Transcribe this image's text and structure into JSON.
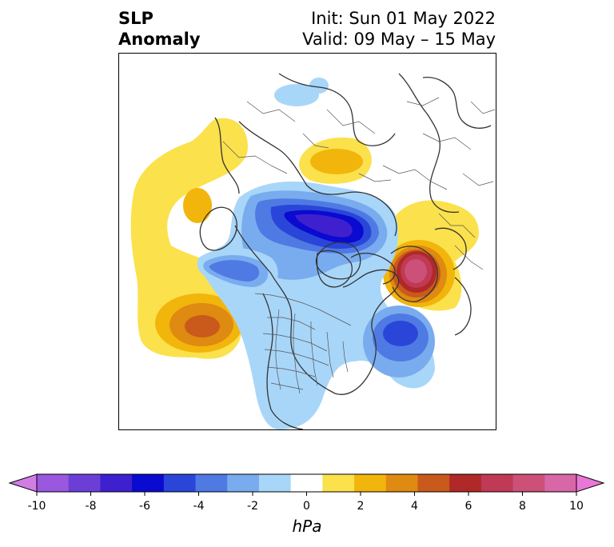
{
  "title": {
    "left_line1": "SLP",
    "left_line2": "Anomaly",
    "right_line1": "Init: Sun 01 May 2022",
    "right_line2": "Valid: 09 May – 15 May"
  },
  "colorbar": {
    "unit": "hPa",
    "min": -10,
    "max": 10,
    "tick_labels": [
      "-10",
      "-8",
      "-6",
      "-4",
      "-2",
      "0",
      "2",
      "4",
      "6",
      "8",
      "10"
    ],
    "colors": [
      "#d27de6",
      "#9a58de",
      "#6b3fd7",
      "#3f20cf",
      "#0a0ad0",
      "#2a46d8",
      "#4f7ae4",
      "#79acee",
      "#a8d6f9",
      "#ffffff",
      "#fbe14c",
      "#f2b50b",
      "#df8a10",
      "#c95a1b",
      "#b02828",
      "#c03a55",
      "#cc5078",
      "#d867a8",
      "#ea77d8"
    ],
    "extend": "both"
  },
  "map": {
    "projection": "north-polar-stereographic",
    "features": [
      "coastlines",
      "country-borders",
      "us-state-borders"
    ],
    "anomaly_centers": [
      {
        "region": "western Russia",
        "type": "high",
        "peak_hpa": 8
      },
      {
        "region": "northeast Pacific",
        "type": "high",
        "peak_hpa": 5
      },
      {
        "region": "Arctic / Siberia",
        "type": "low",
        "peak_hpa": -6
      },
      {
        "region": "North Atlantic",
        "type": "low",
        "peak_hpa": -4
      }
    ]
  }
}
